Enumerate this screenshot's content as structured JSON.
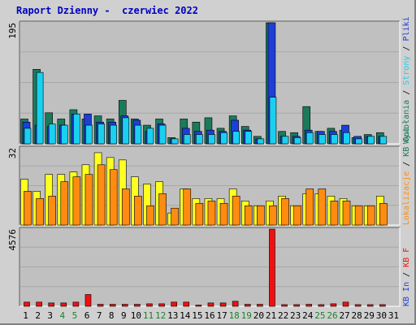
{
  "title": "Raport Dzienny -  czerwiec 2022",
  "colors": {
    "title": "#0000c0",
    "visits": "#1a7a5a",
    "pages": "#1e3ed8",
    "files": "#1ad0f0",
    "sites": "#ffff20",
    "kb_out": "#ff8c10",
    "kb_in": "#ff8c10",
    "kb_f": "#f01010",
    "weekend_tick": "#208030",
    "weekday_tick": "#000000"
  },
  "chart_data": [
    {
      "type": "bar",
      "panel": "hits",
      "ymax_label": "195",
      "ylim": [
        0,
        195
      ],
      "categories": [
        "1",
        "2",
        "3",
        "4",
        "5",
        "6",
        "7",
        "8",
        "9",
        "10",
        "11",
        "12",
        "13",
        "14",
        "15",
        "16",
        "17",
        "18",
        "19",
        "20",
        "21",
        "22",
        "23",
        "24",
        "25",
        "26",
        "27",
        "28",
        "29",
        "30",
        "31"
      ],
      "series": [
        {
          "name": "Wywołania",
          "color": "#1a7a5a",
          "values": [
            40,
            120,
            50,
            40,
            55,
            40,
            45,
            40,
            70,
            40,
            30,
            40,
            10,
            40,
            35,
            42,
            25,
            45,
            28,
            12,
            195,
            20,
            18,
            60,
            20,
            25,
            22,
            10,
            15,
            18,
            0
          ]
        },
        {
          "name": "Strony",
          "color": "#1e3ed8",
          "values": [
            35,
            30,
            28,
            30,
            48,
            48,
            35,
            35,
            45,
            38,
            20,
            32,
            8,
            25,
            20,
            22,
            20,
            38,
            22,
            8,
            195,
            12,
            12,
            22,
            20,
            20,
            30,
            12,
            12,
            12,
            0
          ]
        },
        {
          "name": "Pliki",
          "color": "#1ad0f0",
          "values": [
            25,
            115,
            32,
            30,
            48,
            30,
            32,
            30,
            42,
            30,
            25,
            30,
            8,
            15,
            15,
            15,
            18,
            20,
            20,
            8,
            75,
            12,
            10,
            18,
            15,
            15,
            18,
            8,
            12,
            12,
            0
          ]
        }
      ]
    },
    {
      "type": "bar",
      "panel": "sites",
      "ymax_label": "32",
      "ylim": [
        0,
        32
      ],
      "categories": [
        "1",
        "2",
        "3",
        "4",
        "5",
        "6",
        "7",
        "8",
        "9",
        "10",
        "11",
        "12",
        "13",
        "14",
        "15",
        "16",
        "17",
        "18",
        "19",
        "20",
        "21",
        "22",
        "23",
        "24",
        "25",
        "26",
        "27",
        "28",
        "29",
        "30",
        "31"
      ],
      "series": [
        {
          "name": "Lokalizacje",
          "color": "#ffff20",
          "values": [
            19,
            14,
            21,
            21,
            22,
            25,
            30,
            28,
            27,
            20,
            17,
            18,
            5,
            15,
            11,
            11,
            11,
            15,
            10,
            8,
            10,
            12,
            8,
            13,
            13,
            12,
            11,
            8,
            8,
            12,
            0
          ]
        },
        {
          "name": "KB Out",
          "color": "#ff8c10",
          "values": [
            14,
            11,
            12,
            18,
            20,
            21,
            25,
            23,
            15,
            12,
            8,
            13,
            7,
            15,
            9,
            10,
            9,
            12,
            8,
            8,
            8,
            11,
            8,
            15,
            15,
            10,
            10,
            8,
            8,
            9,
            0
          ]
        }
      ]
    },
    {
      "type": "bar",
      "panel": "kbytes",
      "ymax_label": "4576",
      "ylim": [
        0,
        4576
      ],
      "categories": [
        "1",
        "2",
        "3",
        "4",
        "5",
        "6",
        "7",
        "8",
        "9",
        "10",
        "11",
        "12",
        "13",
        "14",
        "15",
        "16",
        "17",
        "18",
        "19",
        "20",
        "21",
        "22",
        "23",
        "24",
        "25",
        "26",
        "27",
        "28",
        "29",
        "30",
        "31"
      ],
      "series": [
        {
          "name": "KB F",
          "color": "#f01010",
          "values": [
            250,
            250,
            200,
            200,
            250,
            700,
            120,
            120,
            120,
            120,
            150,
            150,
            250,
            250,
            80,
            200,
            200,
            300,
            120,
            120,
            4576,
            100,
            100,
            120,
            100,
            150,
            250,
            100,
            100,
            100,
            0
          ]
        }
      ]
    }
  ],
  "right_legend": {
    "hits": [
      {
        "text": "Wywołania",
        "color": "#1a7a5a"
      },
      {
        "text": "Strony",
        "color": "#1ad0f0"
      },
      {
        "text": "Pliki",
        "color": "#1e3ed8"
      }
    ],
    "sites": [
      {
        "text": "Lokalizacje",
        "color": "#ff8c10"
      },
      {
        "text": "KB Out",
        "color": "#1a7a5a"
      }
    ],
    "kbytes": [
      {
        "text": "KB In",
        "color": "#1e3ed8"
      },
      {
        "text": "KB F",
        "color": "#f01010"
      }
    ]
  },
  "weekend_days": [
    "4",
    "5",
    "11",
    "12",
    "18",
    "19",
    "25",
    "26"
  ]
}
